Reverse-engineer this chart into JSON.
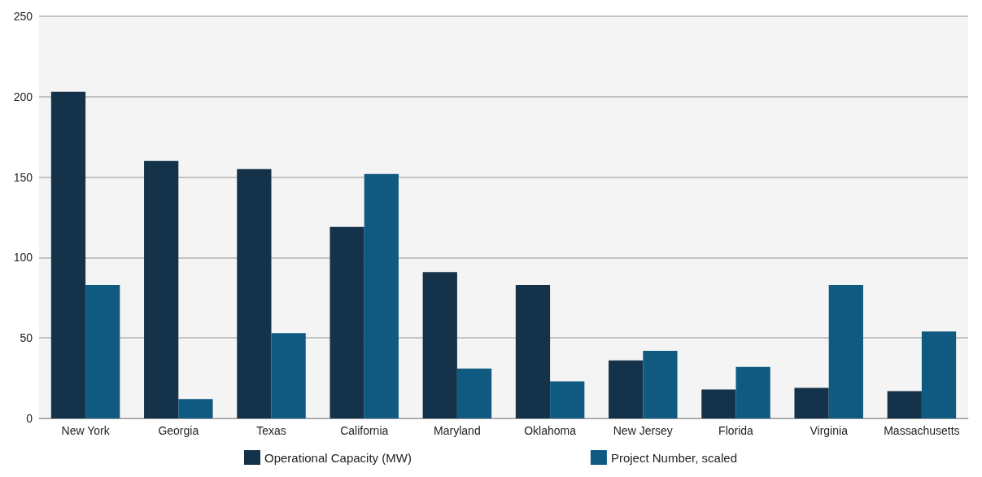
{
  "chart_data": {
    "type": "bar",
    "categories": [
      "New York",
      "Georgia",
      "Texas",
      "California",
      "Maryland",
      "Oklahoma",
      "New Jersey",
      "Florida",
      "Virginia",
      "Massachusetts"
    ],
    "series": [
      {
        "name": "Operational Capacity (MW)",
        "color": "#14334a",
        "values": [
          203,
          160,
          155,
          119,
          91,
          83,
          36,
          18,
          19,
          17
        ]
      },
      {
        "name": "Project Number, scaled",
        "color": "#105a82",
        "values": [
          83,
          12,
          53,
          152,
          31,
          23,
          42,
          32,
          83,
          54
        ]
      }
    ],
    "ylim": [
      0,
      250
    ],
    "yticks": [
      0,
      50,
      100,
      150,
      200,
      250
    ],
    "grid": "y",
    "legend": "bottom"
  }
}
